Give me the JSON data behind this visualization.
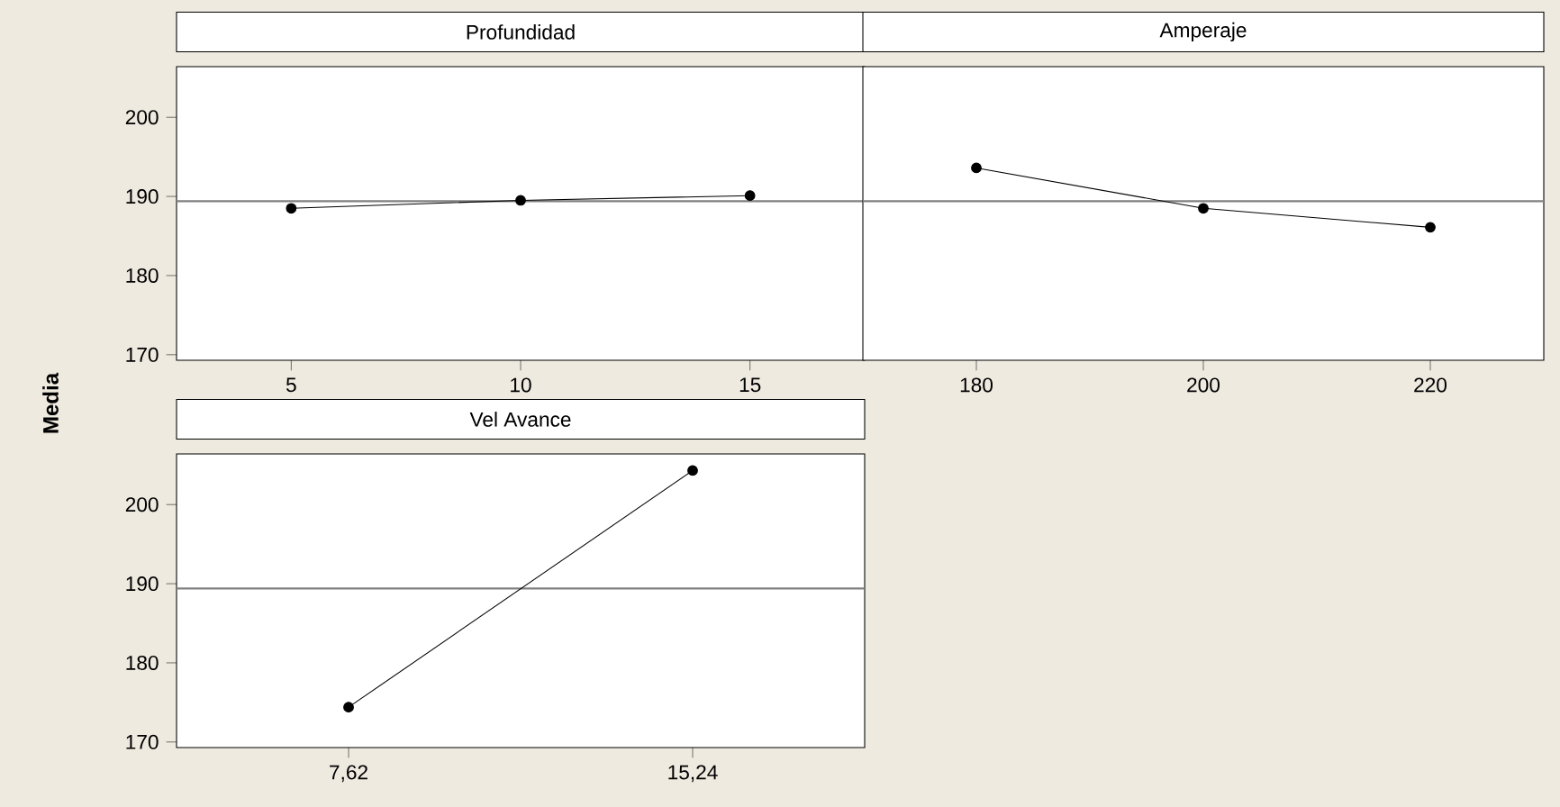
{
  "chart_data": [
    {
      "type": "line",
      "title": "Profundidad",
      "ylabel": "Media",
      "categories": [
        "5",
        "10",
        "15"
      ],
      "series": [
        {
          "color": "#000000",
          "values": [
            188.5,
            189.5,
            190.1
          ]
        }
      ],
      "ylim": [
        169.3,
        206.4
      ],
      "yticks": [
        170,
        180,
        190,
        200
      ],
      "ref_lines": [
        {
          "axis": "y",
          "value": 189.4,
          "color": "#808080"
        }
      ],
      "marker": "circle",
      "line_style": "solid",
      "grid": false
    },
    {
      "type": "line",
      "title": "Amperaje",
      "categories": [
        "180",
        "200",
        "220"
      ],
      "series": [
        {
          "color": "#000000",
          "values": [
            193.6,
            188.5,
            186.1
          ]
        }
      ],
      "ylim": [
        169.3,
        206.4
      ],
      "yticks": [
        170,
        180,
        190,
        200
      ],
      "tick_labels": "x",
      "ref_lines": [
        {
          "axis": "y",
          "value": 189.4,
          "color": "#808080"
        }
      ],
      "marker": "circle",
      "line_style": "solid",
      "grid": false
    },
    {
      "type": "line",
      "title": "Vel Avance",
      "categories": [
        "7,62",
        "15,24"
      ],
      "series": [
        {
          "color": "#000000",
          "values": [
            174.4,
            204.3
          ]
        }
      ],
      "ylim": [
        169.3,
        206.4
      ],
      "yticks": [
        170,
        180,
        190,
        200
      ],
      "ref_lines": [
        {
          "axis": "y",
          "value": 189.4,
          "color": "#808080"
        }
      ],
      "marker": "circle",
      "line_style": "solid",
      "grid": false
    }
  ]
}
